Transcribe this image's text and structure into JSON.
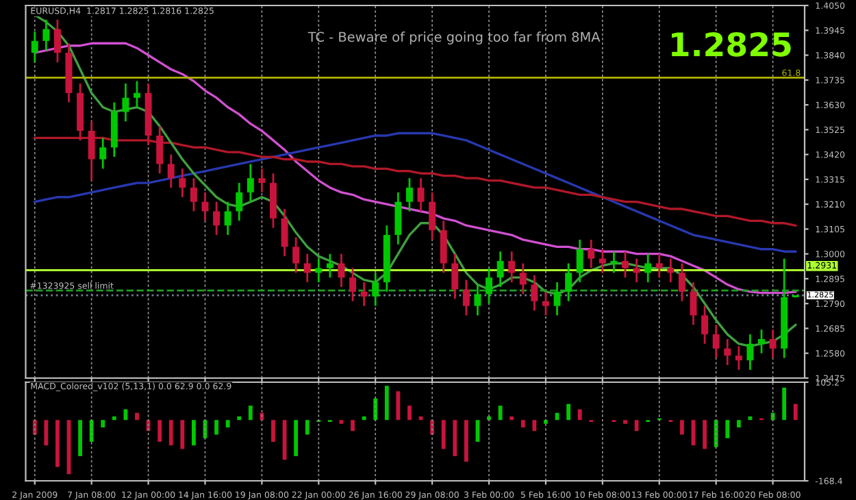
{
  "chart_data": [
    {
      "type": "candlestick",
      "title": "EURUSD,H4  1.2817 1.2825 1.2816 1.2825",
      "categories": [
        null,
        null,
        null,
        null,
        null,
        null,
        null,
        null,
        null,
        null,
        null,
        null,
        null,
        null,
        null,
        null,
        null,
        null,
        null,
        null,
        null,
        null,
        null,
        null,
        null,
        null,
        null,
        null,
        null,
        null,
        null,
        null,
        null,
        null,
        null,
        null,
        null,
        null,
        null,
        null,
        null,
        null,
        null,
        null,
        null,
        null,
        null,
        null,
        null,
        null,
        null,
        null,
        null,
        null,
        null,
        null,
        null,
        null,
        null,
        null,
        null,
        null,
        null,
        null,
        null,
        null,
        null,
        null
      ],
      "ohlc": [
        [
          1.385,
          1.394,
          1.381,
          1.39
        ],
        [
          1.39,
          1.399,
          1.386,
          1.395
        ],
        [
          1.395,
          1.399,
          1.381,
          1.385
        ],
        [
          1.385,
          1.389,
          1.364,
          1.368
        ],
        [
          1.368,
          1.372,
          1.348,
          1.352
        ],
        [
          1.352,
          1.356,
          1.331,
          1.34
        ],
        [
          1.34,
          1.349,
          1.336,
          1.345
        ],
        [
          1.345,
          1.364,
          1.341,
          1.36
        ],
        [
          1.36,
          1.372,
          1.356,
          1.366
        ],
        [
          1.366,
          1.373,
          1.362,
          1.368
        ],
        [
          1.368,
          1.372,
          1.346,
          1.35
        ],
        [
          1.35,
          1.354,
          1.334,
          1.338
        ],
        [
          1.338,
          1.342,
          1.328,
          1.332
        ],
        [
          1.332,
          1.336,
          1.324,
          1.328
        ],
        [
          1.328,
          1.332,
          1.318,
          1.322
        ],
        [
          1.322,
          1.326,
          1.314,
          1.318
        ],
        [
          1.318,
          1.322,
          1.308,
          1.312
        ],
        [
          1.312,
          1.322,
          1.308,
          1.318
        ],
        [
          1.318,
          1.33,
          1.314,
          1.326
        ],
        [
          1.326,
          1.338,
          1.322,
          1.332
        ],
        [
          1.332,
          1.336,
          1.326,
          1.33
        ],
        [
          1.33,
          1.334,
          1.311,
          1.315
        ],
        [
          1.315,
          1.319,
          1.299,
          1.303
        ],
        [
          1.303,
          1.307,
          1.292,
          1.296
        ],
        [
          1.296,
          1.3,
          1.288,
          1.292
        ],
        [
          1.292,
          1.298,
          1.288,
          1.294
        ],
        [
          1.294,
          1.3,
          1.29,
          1.296
        ],
        [
          1.296,
          1.3,
          1.286,
          1.29
        ],
        [
          1.29,
          1.294,
          1.28,
          1.284
        ],
        [
          1.284,
          1.288,
          1.278,
          1.282
        ],
        [
          1.282,
          1.292,
          1.278,
          1.288
        ],
        [
          1.288,
          1.312,
          1.284,
          1.308
        ],
        [
          1.308,
          1.326,
          1.304,
          1.322
        ],
        [
          1.322,
          1.332,
          1.318,
          1.328
        ],
        [
          1.328,
          1.332,
          1.318,
          1.322
        ],
        [
          1.322,
          1.326,
          1.306,
          1.31
        ],
        [
          1.31,
          1.314,
          1.292,
          1.296
        ],
        [
          1.296,
          1.3,
          1.281,
          1.285
        ],
        [
          1.285,
          1.289,
          1.274,
          1.278
        ],
        [
          1.278,
          1.287,
          1.274,
          1.283
        ],
        [
          1.283,
          1.294,
          1.279,
          1.29
        ],
        [
          1.29,
          1.301,
          1.286,
          1.297
        ],
        [
          1.297,
          1.301,
          1.288,
          1.292
        ],
        [
          1.292,
          1.296,
          1.283,
          1.287
        ],
        [
          1.287,
          1.291,
          1.276,
          1.28
        ],
        [
          1.28,
          1.284,
          1.274,
          1.278
        ],
        [
          1.278,
          1.288,
          1.274,
          1.284
        ],
        [
          1.284,
          1.296,
          1.28,
          1.292
        ],
        [
          1.292,
          1.306,
          1.288,
          1.302
        ],
        [
          1.302,
          1.306,
          1.294,
          1.298
        ],
        [
          1.298,
          1.302,
          1.292,
          1.296
        ],
        [
          1.296,
          1.301,
          1.292,
          1.297
        ],
        [
          1.297,
          1.301,
          1.29,
          1.294
        ],
        [
          1.294,
          1.298,
          1.288,
          1.292
        ],
        [
          1.292,
          1.3,
          1.288,
          1.296
        ],
        [
          1.296,
          1.3,
          1.29,
          1.294
        ],
        [
          1.294,
          1.298,
          1.288,
          1.292
        ],
        [
          1.292,
          1.296,
          1.28,
          1.284
        ],
        [
          1.284,
          1.288,
          1.27,
          1.274
        ],
        [
          1.274,
          1.278,
          1.262,
          1.266
        ],
        [
          1.266,
          1.27,
          1.256,
          1.26
        ],
        [
          1.26,
          1.264,
          1.253,
          1.257
        ],
        [
          1.257,
          1.261,
          1.251,
          1.255
        ],
        [
          1.255,
          1.266,
          1.251,
          1.262
        ],
        [
          1.262,
          1.268,
          1.258,
          1.264
        ],
        [
          1.264,
          1.268,
          1.256,
          1.26
        ],
        [
          1.26,
          1.298,
          1.256,
          1.2817
        ],
        [
          1.2817,
          1.2825,
          1.2816,
          1.2825
        ]
      ],
      "colors": [
        "#00c800",
        "#00c800",
        "#c8143c",
        "#c8143c",
        "#c8143c",
        "#c8143c",
        "#00c800",
        "#00c800",
        "#00c800",
        "#00c800",
        "#c8143c",
        "#c8143c",
        "#c8143c",
        "#c8143c",
        "#c8143c",
        "#c8143c",
        "#c8143c",
        "#00c800",
        "#00c800",
        "#00c800",
        "#c8143c",
        "#c8143c",
        "#c8143c",
        "#c8143c",
        "#c8143c",
        "#00c800",
        "#00c800",
        "#c8143c",
        "#c8143c",
        "#c8143c",
        "#00c800",
        "#00c800",
        "#00c800",
        "#00c800",
        "#c8143c",
        "#c8143c",
        "#c8143c",
        "#c8143c",
        "#c8143c",
        "#00c800",
        "#00c800",
        "#00c800",
        "#c8143c",
        "#c8143c",
        "#c8143c",
        "#c8143c",
        "#00c800",
        "#00c800",
        "#00c800",
        "#c8143c",
        "#c8143c",
        "#00c800",
        "#c8143c",
        "#c8143c",
        "#00c800",
        "#c8143c",
        "#c8143c",
        "#c8143c",
        "#c8143c",
        "#c8143c",
        "#c8143c",
        "#c8143c",
        "#c8143c",
        "#00c800",
        "#00c800",
        "#c8143c",
        "#00c800",
        "#00c800"
      ],
      "series": [
        {
          "type": "line",
          "color": "#d050d0",
          "values": [
            1.385,
            1.386,
            1.387,
            1.388,
            1.388,
            1.389,
            1.389,
            1.389,
            1.389,
            1.387,
            1.384,
            1.381,
            1.378,
            1.376,
            1.373,
            1.369,
            1.366,
            1.362,
            1.359,
            1.355,
            1.352,
            1.348,
            1.344,
            1.339,
            1.335,
            1.331,
            1.328,
            1.326,
            1.325,
            1.323,
            1.322,
            1.321,
            1.32,
            1.319,
            1.318,
            1.317,
            1.315,
            1.314,
            1.312,
            1.311,
            1.31,
            1.309,
            1.308,
            1.306,
            1.305,
            1.304,
            1.303,
            1.303,
            1.302,
            1.302,
            1.301,
            1.301,
            1.301,
            1.3,
            1.3,
            1.3,
            1.299,
            1.297,
            1.295,
            1.293,
            1.29,
            1.287,
            1.285,
            1.284,
            1.2835,
            1.2835,
            1.2835,
            1.284
          ]
        },
        {
          "type": "line",
          "color": "#2838b0",
          "values": [
            1.322,
            1.323,
            1.324,
            1.324,
            1.325,
            1.326,
            1.327,
            1.328,
            1.329,
            1.33,
            1.33,
            1.331,
            1.332,
            1.333,
            1.334,
            1.335,
            1.336,
            1.337,
            1.338,
            1.339,
            1.34,
            1.341,
            1.342,
            1.343,
            1.344,
            1.345,
            1.346,
            1.347,
            1.348,
            1.349,
            1.35,
            1.35,
            1.351,
            1.351,
            1.351,
            1.351,
            1.35,
            1.349,
            1.348,
            1.346,
            1.344,
            1.342,
            1.34,
            1.338,
            1.336,
            1.334,
            1.332,
            1.33,
            1.328,
            1.326,
            1.324,
            1.322,
            1.32,
            1.318,
            1.316,
            1.314,
            1.312,
            1.31,
            1.308,
            1.307,
            1.306,
            1.305,
            1.304,
            1.303,
            1.302,
            1.302,
            1.301,
            1.301
          ]
        },
        {
          "type": "line",
          "color": "#b01828",
          "values": [
            1.349,
            1.349,
            1.349,
            1.349,
            1.349,
            1.349,
            1.349,
            1.348,
            1.348,
            1.348,
            1.348,
            1.347,
            1.347,
            1.346,
            1.345,
            1.345,
            1.344,
            1.343,
            1.343,
            1.342,
            1.341,
            1.341,
            1.34,
            1.34,
            1.339,
            1.339,
            1.338,
            1.338,
            1.337,
            1.337,
            1.336,
            1.336,
            1.335,
            1.335,
            1.334,
            1.334,
            1.333,
            1.333,
            1.332,
            1.332,
            1.331,
            1.331,
            1.33,
            1.329,
            1.328,
            1.328,
            1.327,
            1.326,
            1.325,
            1.325,
            1.324,
            1.323,
            1.322,
            1.322,
            1.321,
            1.32,
            1.319,
            1.319,
            1.318,
            1.317,
            1.316,
            1.316,
            1.315,
            1.314,
            1.314,
            1.313,
            1.313,
            1.312
          ]
        },
        {
          "type": "line",
          "color": "#40a040",
          "values": [
            1.401,
            1.398,
            1.394,
            1.388,
            1.378,
            1.368,
            1.362,
            1.36,
            1.361,
            1.362,
            1.36,
            1.354,
            1.347,
            1.34,
            1.334,
            1.329,
            1.324,
            1.321,
            1.32,
            1.322,
            1.324,
            1.322,
            1.316,
            1.309,
            1.303,
            1.299,
            1.297,
            1.295,
            1.292,
            1.289,
            1.288,
            1.292,
            1.3,
            1.308,
            1.313,
            1.313,
            1.308,
            1.3,
            1.292,
            1.287,
            1.285,
            1.287,
            1.29,
            1.29,
            1.288,
            1.284,
            1.283,
            1.285,
            1.29,
            1.293,
            1.295,
            1.296,
            1.296,
            1.295,
            1.294,
            1.294,
            1.294,
            1.291,
            1.286,
            1.279,
            1.272,
            1.266,
            1.262,
            1.261,
            1.262,
            1.263,
            1.266,
            1.27
          ]
        }
      ],
      "ylim": [
        1.2475,
        1.405
      ],
      "yticks": [
        {
          "value": 1.405,
          "label": "1.4050"
        },
        {
          "value": 1.3945,
          "label": "1.3945"
        },
        {
          "value": 1.384,
          "label": "1.3840"
        },
        {
          "value": 1.3735,
          "label": "1.3735"
        },
        {
          "value": 1.363,
          "label": "1.3630"
        },
        {
          "value": 1.3525,
          "label": "1.3525"
        },
        {
          "value": 1.342,
          "label": "1.3420"
        },
        {
          "value": 1.3315,
          "label": "1.3315"
        },
        {
          "value": 1.321,
          "label": "1.3210"
        },
        {
          "value": 1.3105,
          "label": "1.3105"
        },
        {
          "value": 1.3,
          "label": "1.3000"
        },
        {
          "value": 1.2895,
          "label": "1.2895"
        },
        {
          "value": 1.279,
          "label": "1.2790"
        },
        {
          "value": 1.2685,
          "label": "1.2685"
        },
        {
          "value": 1.258,
          "label": "1.2580"
        },
        {
          "value": 1.2475,
          "label": "1.2475"
        }
      ],
      "ref_lines": [
        {
          "axis": "y",
          "value": 1.3745,
          "color": "#b0b000",
          "line_style": "solid"
        },
        {
          "axis": "y",
          "value": 1.2931,
          "label": "1.2931",
          "color": "#adff2f",
          "line_style": "solid"
        },
        {
          "axis": "y",
          "value": 1.2845,
          "label": "#1323925 sell limit",
          "color": "#20a020",
          "line_style": "dashed"
        },
        {
          "axis": "y",
          "value": 1.2825,
          "label": "1.2825",
          "color": "#708090",
          "line_style": "dotted"
        }
      ],
      "annotations": [
        "TC - Beware of price going too far from 8MA",
        "1.2825",
        {
          "text": "61.8",
          "y": 1.3745
        }
      ],
      "grid": "x",
      "tick_labels": "y"
    },
    {
      "type": "bar",
      "title": "MACD_Colored_v102 (5,13,1) 0.0 62.9 0.0 62.9",
      "categories": [
        "2 Jan 2009",
        null,
        null,
        null,
        null,
        "7 Jan 08:00",
        null,
        null,
        null,
        null,
        "12 Jan 00:00",
        null,
        null,
        null,
        null,
        "14 Jan 16:00",
        null,
        null,
        null,
        null,
        "19 Jan 08:00",
        null,
        null,
        null,
        null,
        "22 Jan 00:00",
        null,
        null,
        null,
        null,
        "26 Jan 16:00",
        null,
        null,
        null,
        null,
        "29 Jan 08:00",
        null,
        null,
        null,
        null,
        "3 Feb 00:00",
        null,
        null,
        null,
        null,
        "5 Feb 16:00",
        null,
        null,
        null,
        null,
        "10 Feb 08:00",
        null,
        null,
        null,
        null,
        "13 Feb 00:00",
        null,
        null,
        null,
        null,
        "17 Feb 16:00",
        null,
        null,
        null,
        null,
        "20 Feb 08:00",
        null,
        null
      ],
      "values": [
        -40,
        -70,
        -130,
        -150,
        -100,
        -60,
        -20,
        10,
        30,
        20,
        -30,
        -60,
        -70,
        -80,
        -70,
        -50,
        -40,
        -20,
        10,
        40,
        20,
        -60,
        -110,
        -100,
        -40,
        -5,
        -5,
        -10,
        -30,
        10,
        60,
        95,
        80,
        40,
        10,
        -40,
        -80,
        -100,
        -115,
        -60,
        10,
        40,
        10,
        -20,
        -30,
        -10,
        20,
        45,
        30,
        -5,
        0,
        -5,
        -10,
        -30,
        -5,
        5,
        -5,
        -40,
        -70,
        -80,
        -75,
        -50,
        -20,
        10,
        5,
        20,
        90,
        45
      ],
      "colors": [
        "#c8143c",
        "#c8143c",
        "#c8143c",
        "#c8143c",
        "#00c800",
        "#00c800",
        "#00c800",
        "#00c800",
        "#00c800",
        "#c8143c",
        "#c8143c",
        "#c8143c",
        "#c8143c",
        "#c8143c",
        "#00c800",
        "#00c800",
        "#00c800",
        "#00c800",
        "#00c800",
        "#00c800",
        "#c8143c",
        "#c8143c",
        "#c8143c",
        "#00c800",
        "#00c800",
        "#00c800",
        "#00c800",
        "#c8143c",
        "#c8143c",
        "#00c800",
        "#00c800",
        "#00c800",
        "#c8143c",
        "#c8143c",
        "#c8143c",
        "#c8143c",
        "#c8143c",
        "#c8143c",
        "#c8143c",
        "#00c800",
        "#00c800",
        "#00c800",
        "#c8143c",
        "#c8143c",
        "#c8143c",
        "#00c800",
        "#00c800",
        "#00c800",
        "#c8143c",
        "#c8143c",
        "#00c800",
        "#c8143c",
        "#c8143c",
        "#c8143c",
        "#00c800",
        "#00c800",
        "#c8143c",
        "#c8143c",
        "#c8143c",
        "#c8143c",
        "#00c800",
        "#00c800",
        "#00c800",
        "#00c800",
        "#c8143c",
        "#00c800",
        "#00c800",
        "#c8143c"
      ],
      "ylim": [
        -168.4,
        105.2
      ],
      "yticks": [
        105.2,
        -168.4
      ],
      "grid": "x"
    }
  ]
}
